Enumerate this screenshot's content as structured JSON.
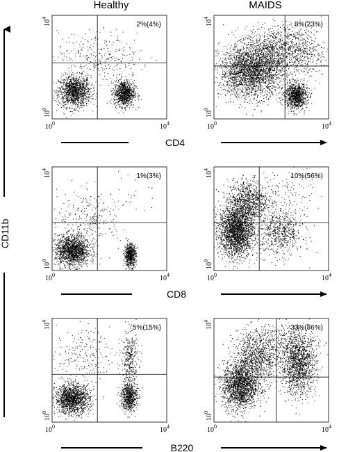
{
  "figure": {
    "columns": [
      "Healthy",
      "MAIDS"
    ],
    "y_axis_label": "CD11b",
    "row_axis_labels": [
      "CD4",
      "CD8",
      "B220"
    ],
    "tick_labels": {
      "low": "0",
      "high": "4",
      "base": "10"
    }
  },
  "chart_data": [
    {
      "type": "scatter",
      "panel": "Healthy / CD4",
      "xlabel": "CD4",
      "ylabel": "CD11b",
      "log_scale": true,
      "xlim": [
        1,
        10000
      ],
      "ylim": [
        1,
        10000
      ],
      "annotation": "2%(4%)",
      "gate_lines": {
        "x": 38,
        "y": 145
      },
      "clusters": [
        {
          "cx": 6,
          "cy": 12,
          "sx": 0.28,
          "sy": 0.3,
          "n": 1300
        },
        {
          "cx": 320,
          "cy": 10,
          "sx": 0.18,
          "sy": 0.25,
          "n": 950
        },
        {
          "cx": 25,
          "cy": 300,
          "sx": 0.6,
          "sy": 0.45,
          "n": 220
        },
        {
          "cx": 300,
          "cy": 250,
          "sx": 0.45,
          "sy": 0.5,
          "n": 70
        }
      ]
    },
    {
      "type": "scatter",
      "panel": "MAIDS / CD4",
      "xlabel": "CD4",
      "ylabel": "CD11b",
      "log_scale": true,
      "xlim": [
        1,
        10000
      ],
      "ylim": [
        1,
        10000
      ],
      "annotation": "8%(23%)",
      "gate_lines": {
        "x": 300,
        "y": 110
      },
      "clusters": [
        {
          "cx": 20,
          "cy": 70,
          "sx": 0.55,
          "sy": 0.5,
          "n": 2600
        },
        {
          "cx": 700,
          "cy": 8,
          "sx": 0.2,
          "sy": 0.25,
          "n": 1000
        },
        {
          "cx": 150,
          "cy": 500,
          "sx": 0.55,
          "sy": 0.45,
          "n": 900
        },
        {
          "cx": 1500,
          "cy": 400,
          "sx": 0.35,
          "sy": 0.5,
          "n": 300
        }
      ]
    },
    {
      "type": "scatter",
      "panel": "Healthy / CD8",
      "xlabel": "CD8",
      "ylabel": "CD11b",
      "log_scale": true,
      "xlim": [
        1,
        10000
      ],
      "ylim": [
        1,
        10000
      ],
      "annotation": "1%(3%)",
      "gate_lines": {
        "x": 38,
        "y": 70
      },
      "clusters": [
        {
          "cx": 5,
          "cy": 6,
          "sx": 0.3,
          "sy": 0.3,
          "n": 1600
        },
        {
          "cx": 520,
          "cy": 4,
          "sx": 0.1,
          "sy": 0.22,
          "n": 650
        },
        {
          "cx": 20,
          "cy": 120,
          "sx": 0.55,
          "sy": 0.5,
          "n": 260
        },
        {
          "cx": 700,
          "cy": 1200,
          "sx": 0.5,
          "sy": 0.4,
          "n": 25
        }
      ]
    },
    {
      "type": "scatter",
      "panel": "MAIDS / CD8",
      "xlabel": "CD8",
      "ylabel": "CD11b",
      "log_scale": true,
      "xlim": [
        1,
        10000
      ],
      "ylim": [
        1,
        10000
      ],
      "annotation": "10%(56%)",
      "gate_lines": {
        "x": 38,
        "y": 70
      },
      "clusters": [
        {
          "cx": 6,
          "cy": 35,
          "sx": 0.3,
          "sy": 0.5,
          "n": 2400
        },
        {
          "cx": 15,
          "cy": 500,
          "sx": 0.35,
          "sy": 0.4,
          "n": 900
        },
        {
          "cx": 200,
          "cy": 30,
          "sx": 0.4,
          "sy": 0.45,
          "n": 700
        },
        {
          "cx": 300,
          "cy": 1000,
          "sx": 0.5,
          "sy": 0.5,
          "n": 120
        }
      ]
    },
    {
      "type": "scatter",
      "panel": "Healthy / B220",
      "xlabel": "B220",
      "ylabel": "CD11b",
      "log_scale": true,
      "xlim": [
        1,
        10000
      ],
      "ylim": [
        1,
        10000
      ],
      "annotation": "5%(15%)",
      "gate_lines": {
        "x": 38,
        "y": 70
      },
      "clusters": [
        {
          "cx": 5,
          "cy": 8,
          "sx": 0.3,
          "sy": 0.28,
          "n": 1500
        },
        {
          "cx": 480,
          "cy": 10,
          "sx": 0.14,
          "sy": 0.28,
          "n": 700
        },
        {
          "cx": 500,
          "cy": 300,
          "sx": 0.15,
          "sy": 0.55,
          "n": 350
        },
        {
          "cx": 12,
          "cy": 400,
          "sx": 0.45,
          "sy": 0.5,
          "n": 200
        }
      ]
    },
    {
      "type": "scatter",
      "panel": "MAIDS / B220",
      "xlabel": "B220",
      "ylabel": "CD11b",
      "log_scale": true,
      "xlim": [
        1,
        10000
      ],
      "ylim": [
        1,
        10000
      ],
      "annotation": "33%(86%)",
      "gate_lines": {
        "x": 150,
        "y": 55
      },
      "clusters": [
        {
          "cx": 8,
          "cy": 25,
          "sx": 0.3,
          "sy": 0.45,
          "n": 1800
        },
        {
          "cx": 30,
          "cy": 300,
          "sx": 0.4,
          "sy": 0.55,
          "n": 1100
        },
        {
          "cx": 900,
          "cy": 150,
          "sx": 0.3,
          "sy": 0.55,
          "n": 1300
        },
        {
          "cx": 400,
          "cy": 1200,
          "sx": 0.5,
          "sy": 0.4,
          "n": 400
        }
      ]
    }
  ]
}
